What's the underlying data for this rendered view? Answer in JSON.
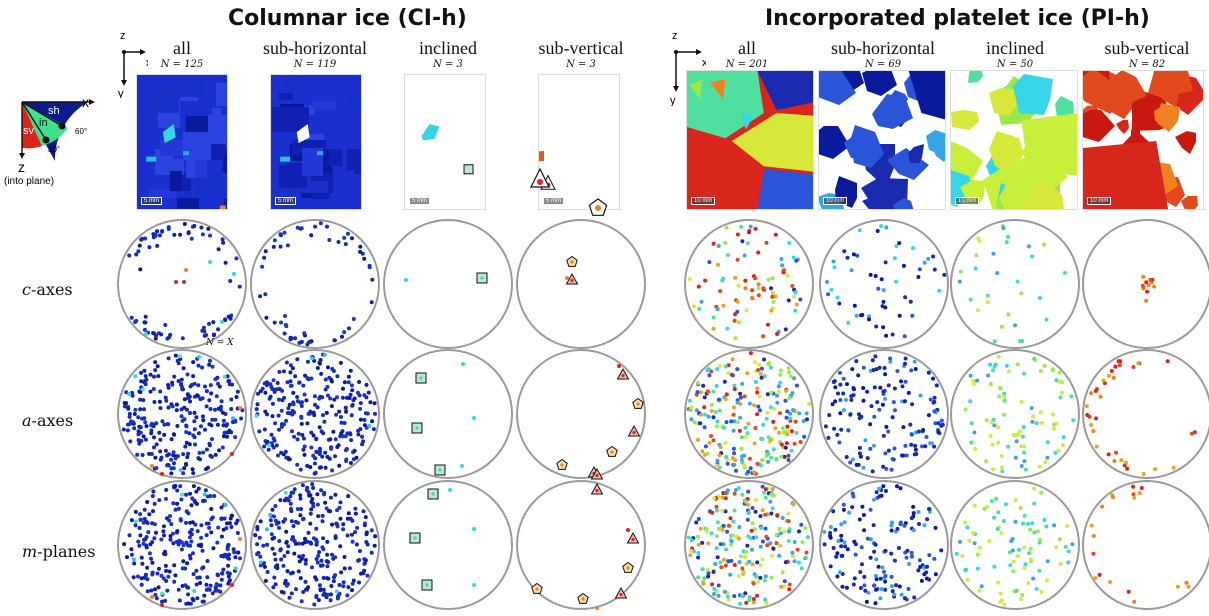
{
  "groups": [
    {
      "title": "Columnar ice (CI-h)"
    },
    {
      "title": "Incorporated platelet ice (PI-h)"
    }
  ],
  "columns": [
    {
      "label": "all",
      "n": "N = 125"
    },
    {
      "label": "sub-horizontal",
      "n": "N = 119"
    },
    {
      "label": "inclined",
      "n": "N = 3"
    },
    {
      "label": "sub-vertical",
      "n": "N = 3"
    },
    {
      "label": "all",
      "n": "N = 201"
    },
    {
      "label": "sub-horizontal",
      "n": "N = 69"
    },
    {
      "label": "inclined",
      "n": "N = 50"
    },
    {
      "label": "sub-vertical",
      "n": "N = 82"
    }
  ],
  "rows": [
    {
      "prefix": "c",
      "suffix": "-axes"
    },
    {
      "prefix": "a",
      "suffix": "-axes"
    },
    {
      "prefix": "m",
      "suffix": "-planes"
    }
  ],
  "axes_labels": {
    "z": "z",
    "x": "x",
    "y": "y"
  },
  "scale_bars": [
    "5 mm",
    "5 mm",
    "5 mm",
    "5 mm",
    "10 mm",
    "10 mm",
    "10 mm",
    "10 mm"
  ],
  "key": {
    "x": "x",
    "z": "z",
    "into_plane": "(into plane)",
    "sh": "sh",
    "in": "in",
    "sv": "sv",
    "angle60": "60°",
    "angle30": "30°"
  },
  "pole_figure_note": "N = X",
  "colors": {
    "sub_horizontal": "#1a2bb0",
    "inclined": "#36d6e6",
    "sub_vertical": "#d8261c",
    "platelet_green": "#c8f03a",
    "circle": "#9a9a9a"
  }
}
